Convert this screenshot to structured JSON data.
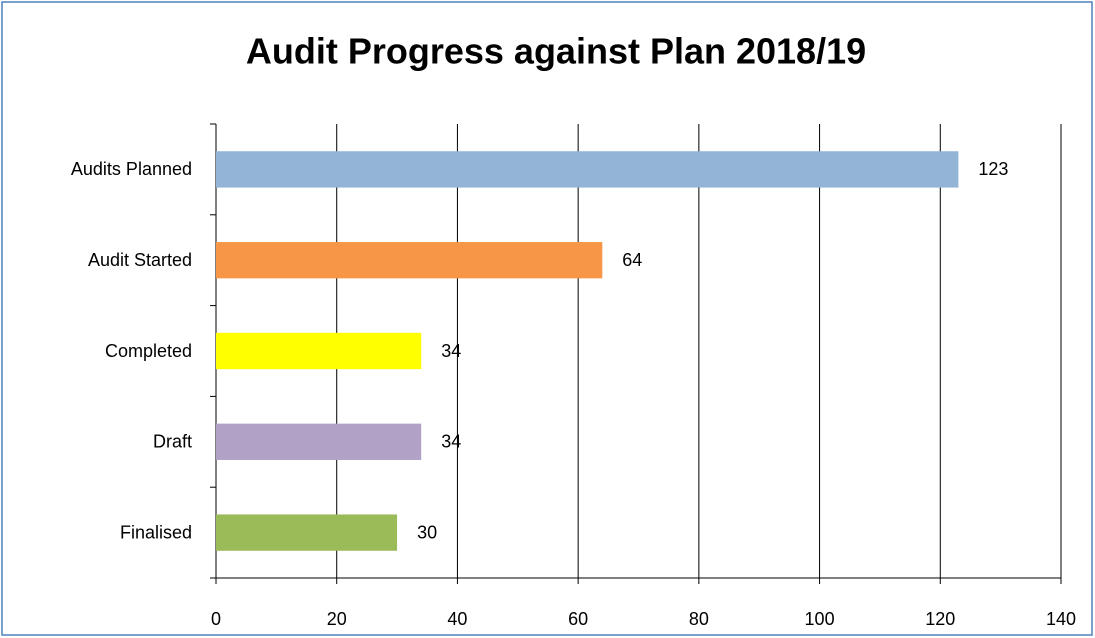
{
  "chart_data": {
    "type": "bar",
    "orientation": "horizontal",
    "title": "Audit Progress against Plan 2018/19",
    "categories": [
      "Audits Planned",
      "Audit Started",
      "Completed",
      "Draft",
      "Finalised"
    ],
    "values": [
      123,
      64,
      34,
      34,
      30
    ],
    "colors": [
      "#93b3d7",
      "#f79646",
      "#ffff00",
      "#b2a1c7",
      "#9bbb59"
    ],
    "xlim": [
      0,
      140
    ],
    "xticks": [
      0,
      20,
      40,
      60,
      80,
      100,
      120,
      140
    ],
    "grid": true
  }
}
